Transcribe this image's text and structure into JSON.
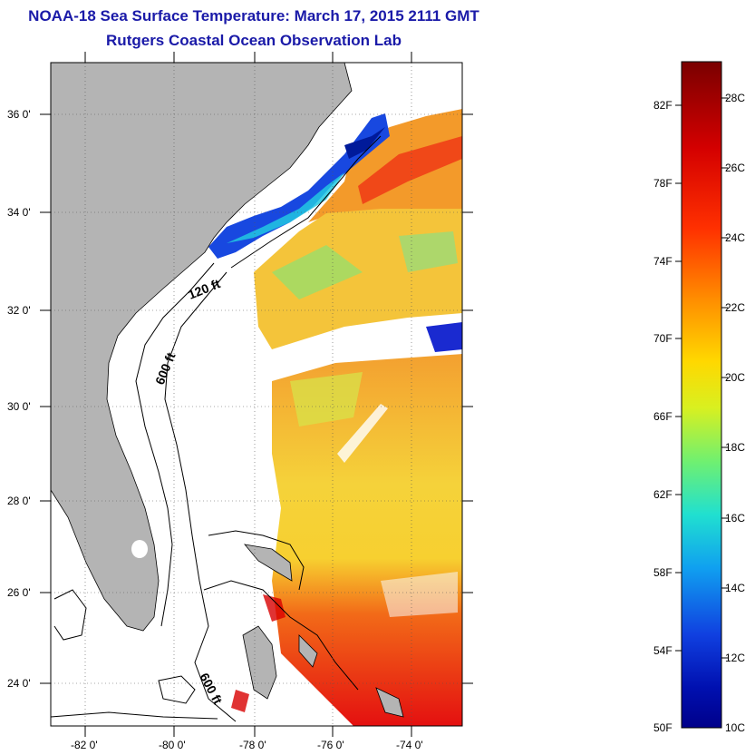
{
  "header": {
    "title": "NOAA-18 Sea Surface Temperature:  March 17, 2015 2111 GMT",
    "subtitle": "Rutgers Coastal Ocean Observation Lab"
  },
  "map": {
    "lat_labels": [
      "36 0'",
      "34 0'",
      "32 0'",
      "30 0'",
      "28 0'",
      "26 0'",
      "24 0'"
    ],
    "lon_labels": [
      "-82 0'",
      "-80 0'",
      "-78 0'",
      "-76 0'",
      "-74 0'"
    ],
    "contours": {
      "c120": "120 ft",
      "c600a": "600 ft",
      "c600b": "600 ft"
    }
  },
  "colorbar": {
    "f_labels": [
      "82F",
      "78F",
      "74F",
      "70F",
      "66F",
      "62F",
      "58F",
      "54F",
      "50F"
    ],
    "c_labels": [
      "28C",
      "26C",
      "24C",
      "22C",
      "20C",
      "18C",
      "16C",
      "14C",
      "12C",
      "10C"
    ],
    "colors": [
      "#7a0000",
      "#d40000",
      "#ff4000",
      "#ff9a00",
      "#ffd800",
      "#d8f020",
      "#70f070",
      "#20e0d0",
      "#10a0f0",
      "#1040e0",
      "#0010b0",
      "#00008a"
    ]
  }
}
